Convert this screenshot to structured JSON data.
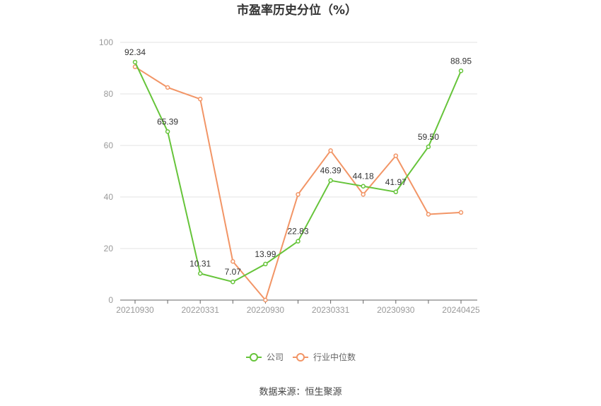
{
  "chart_data": {
    "type": "line",
    "title": "市盈率历史分位（%）",
    "ylim": [
      0,
      100
    ],
    "yticks": [
      0,
      20,
      40,
      60,
      80,
      100
    ],
    "xtick_labels": [
      "20210930",
      "20220331",
      "20220930",
      "20230331",
      "20230930",
      "20240425"
    ],
    "x": [
      "20210930",
      "20211231",
      "20220331",
      "20220630",
      "20220930",
      "20221231",
      "20230331",
      "20230630",
      "20230930",
      "20231231",
      "20240425"
    ],
    "series": [
      {
        "name": "公司",
        "color": "#66c43a",
        "values": [
          92.34,
          65.39,
          10.31,
          7.07,
          13.99,
          22.83,
          46.39,
          44.18,
          41.97,
          59.5,
          88.95
        ],
        "labels": [
          "92.34",
          "65.39",
          "10.31",
          "7.07",
          "13.99",
          "22.83",
          "46.39",
          "44.18",
          "41.97",
          "59.50",
          "88.95"
        ]
      },
      {
        "name": "行业中位数",
        "color": "#f29566",
        "values": [
          90.5,
          82.5,
          78,
          15,
          0,
          41,
          58,
          41,
          56,
          33.3,
          34
        ]
      }
    ],
    "grid": true,
    "legend_position": "bottom-center",
    "source": "数据来源：恒生聚源"
  }
}
